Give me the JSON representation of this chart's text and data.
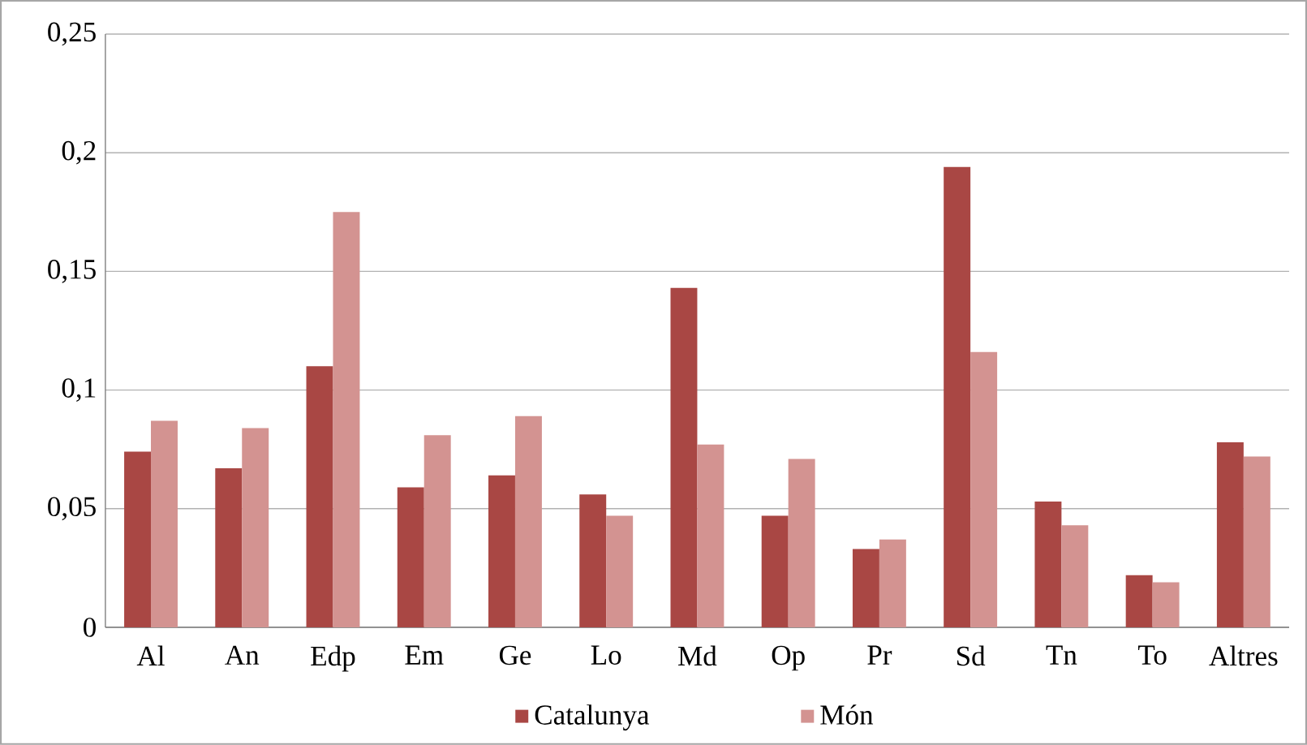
{
  "chart_data": {
    "type": "bar",
    "categories": [
      "Al",
      "An",
      "Edp",
      "Em",
      "Ge",
      "Lo",
      "Md",
      "Op",
      "Pr",
      "Sd",
      "Tn",
      "To",
      "Altres"
    ],
    "series": [
      {
        "name": "Catalunya",
        "color": "#a94744",
        "values": [
          0.074,
          0.067,
          0.11,
          0.059,
          0.064,
          0.056,
          0.143,
          0.047,
          0.033,
          0.194,
          0.053,
          0.022,
          0.078
        ]
      },
      {
        "name": "Món",
        "color": "#d39391",
        "values": [
          0.087,
          0.084,
          0.175,
          0.081,
          0.089,
          0.047,
          0.077,
          0.071,
          0.037,
          0.116,
          0.043,
          0.019,
          0.072
        ]
      }
    ],
    "ylim": [
      0,
      0.25
    ],
    "yticks": [
      {
        "value": 0,
        "label": "0"
      },
      {
        "value": 0.05,
        "label": "0,05"
      },
      {
        "value": 0.1,
        "label": "0,1"
      },
      {
        "value": 0.15,
        "label": "0,15"
      },
      {
        "value": 0.2,
        "label": "0,2"
      },
      {
        "value": 0.25,
        "label": "0,25"
      }
    ],
    "grid": "y",
    "legend": "bottom"
  }
}
